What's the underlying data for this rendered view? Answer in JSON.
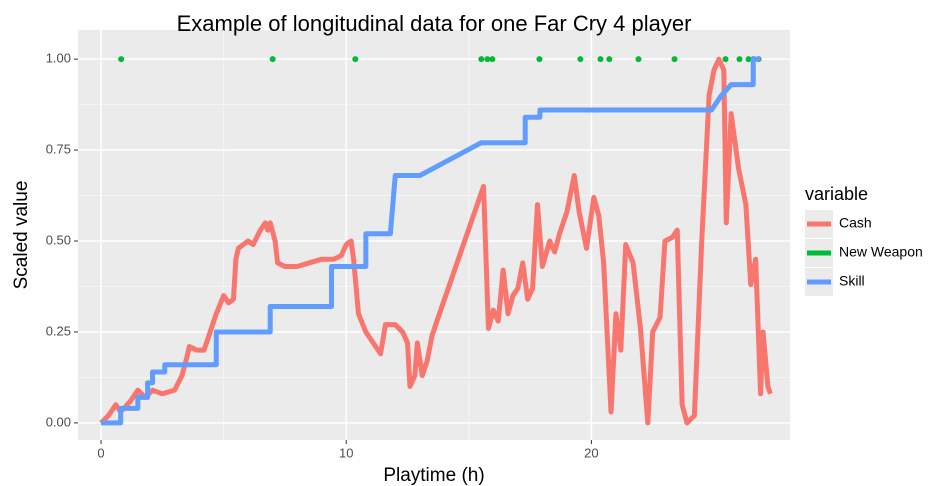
{
  "chart_data": {
    "type": "line",
    "title": "Example of longitudinal data for one Far Cry 4 player",
    "xlabel": "Playtime (h)",
    "ylabel": "Scaled value",
    "legend_title": "variable",
    "legend": "right",
    "grid": true,
    "xlim": [
      -0.94,
      28.1
    ],
    "ylim": [
      -0.047,
      1.08
    ],
    "xticks": [
      0,
      10,
      20
    ],
    "yticks": [
      {
        "value": 0,
        "label": "0.00"
      },
      {
        "value": 0.25,
        "label": "0.25"
      },
      {
        "value": 0.5,
        "label": "0.50"
      },
      {
        "value": 0.75,
        "label": "0.75"
      },
      {
        "value": 1,
        "label": "1.00"
      }
    ],
    "series": [
      {
        "name": "Cash",
        "color": "#F8766D",
        "mark": "line",
        "x": [
          0,
          0.3,
          0.6,
          0.8,
          1.2,
          1.5,
          1.8,
          2.1,
          2.5,
          3,
          3.3,
          3.5,
          3.6,
          3.9,
          4.2,
          4.5,
          4.7,
          5.0,
          5.2,
          5.4,
          5.5,
          5.6,
          6.0,
          6.2,
          6.5,
          6.7,
          6.8,
          6.9,
          7.1,
          7.2,
          7.5,
          8,
          8.5,
          9,
          9.5,
          9.8,
          10,
          10.2,
          10.3,
          10.5,
          10.8,
          11.2,
          11.4,
          11.6,
          12,
          12.3,
          12.5,
          12.6,
          12.8,
          12.9,
          13.1,
          13.3,
          13.5,
          13.7,
          15.6,
          15.8,
          16,
          16.2,
          16.4,
          16.6,
          16.8,
          17,
          17.2,
          17.4,
          17.6,
          17.8,
          18,
          18.3,
          18.5,
          18.7,
          19,
          19.3,
          19.5,
          19.8,
          20.1,
          20.3,
          20.5,
          20.8,
          21.0,
          21.2,
          21.4,
          21.7,
          22.0,
          22.3,
          22.5,
          22.8,
          23.0,
          23.3,
          23.5,
          23.7,
          23.9,
          24.2,
          24.5,
          24.8,
          25.0,
          25.2,
          25.4,
          25.5,
          25.7,
          26.0,
          26.3,
          26.5,
          26.7,
          26.9,
          27.0,
          27.2,
          27.3
        ],
        "values": [
          0,
          0.02,
          0.05,
          0.03,
          0.06,
          0.09,
          0.07,
          0.09,
          0.08,
          0.09,
          0.13,
          0.18,
          0.21,
          0.2,
          0.2,
          0.26,
          0.3,
          0.35,
          0.33,
          0.34,
          0.45,
          0.48,
          0.5,
          0.49,
          0.53,
          0.55,
          0.53,
          0.55,
          0.5,
          0.44,
          0.43,
          0.43,
          0.44,
          0.45,
          0.45,
          0.46,
          0.49,
          0.5,
          0.45,
          0.3,
          0.25,
          0.21,
          0.19,
          0.27,
          0.27,
          0.25,
          0.22,
          0.1,
          0.13,
          0.22,
          0.13,
          0.17,
          0.24,
          0.28,
          0.65,
          0.26,
          0.31,
          0.28,
          0.42,
          0.3,
          0.35,
          0.37,
          0.44,
          0.34,
          0.37,
          0.6,
          0.43,
          0.5,
          0.47,
          0.52,
          0.58,
          0.68,
          0.58,
          0.48,
          0.62,
          0.57,
          0.44,
          0.03,
          0.3,
          0.2,
          0.49,
          0.44,
          0.26,
          0,
          0.25,
          0.29,
          0.5,
          0.51,
          0.53,
          0.05,
          0,
          0.02,
          0.5,
          0.9,
          0.97,
          1,
          0.97,
          0.55,
          0.85,
          0.7,
          0.6,
          0.38,
          0.45,
          0.08,
          0.25,
          0.1,
          0.08
        ]
      },
      {
        "name": "New Weapon",
        "color": "#00BA38",
        "mark": "point",
        "x": [
          0.82,
          7.0,
          10.37,
          15.51,
          15.76,
          15.96,
          17.88,
          19.55,
          20.37,
          20.73,
          21.92,
          23.39,
          25.47,
          26.04,
          26.41,
          26.61,
          26.82
        ],
        "values": [
          1,
          1,
          1,
          1,
          1,
          1,
          1,
          1,
          1,
          1,
          1,
          1,
          1,
          1,
          1,
          1,
          1
        ]
      },
      {
        "name": "Skill",
        "color": "#619CFF",
        "mark": "line",
        "x": [
          0,
          0.8,
          0.8,
          1.5,
          1.5,
          1.9,
          1.9,
          2.1,
          2.1,
          2.6,
          2.6,
          4.7,
          4.7,
          6.9,
          6.9,
          9.4,
          9.4,
          10.8,
          10.8,
          11.8,
          12.0,
          13.0,
          15.5,
          17.3,
          17.3,
          17.9,
          17.9,
          24.9,
          25.3,
          25.7,
          26.6,
          26.6,
          26.9
        ],
        "values": [
          0,
          0,
          0.04,
          0.04,
          0.07,
          0.07,
          0.11,
          0.11,
          0.14,
          0.14,
          0.16,
          0.16,
          0.25,
          0.25,
          0.32,
          0.32,
          0.43,
          0.43,
          0.52,
          0.52,
          0.68,
          0.68,
          0.77,
          0.77,
          0.84,
          0.84,
          0.86,
          0.86,
          0.9,
          0.93,
          0.93,
          1,
          1
        ]
      }
    ]
  }
}
